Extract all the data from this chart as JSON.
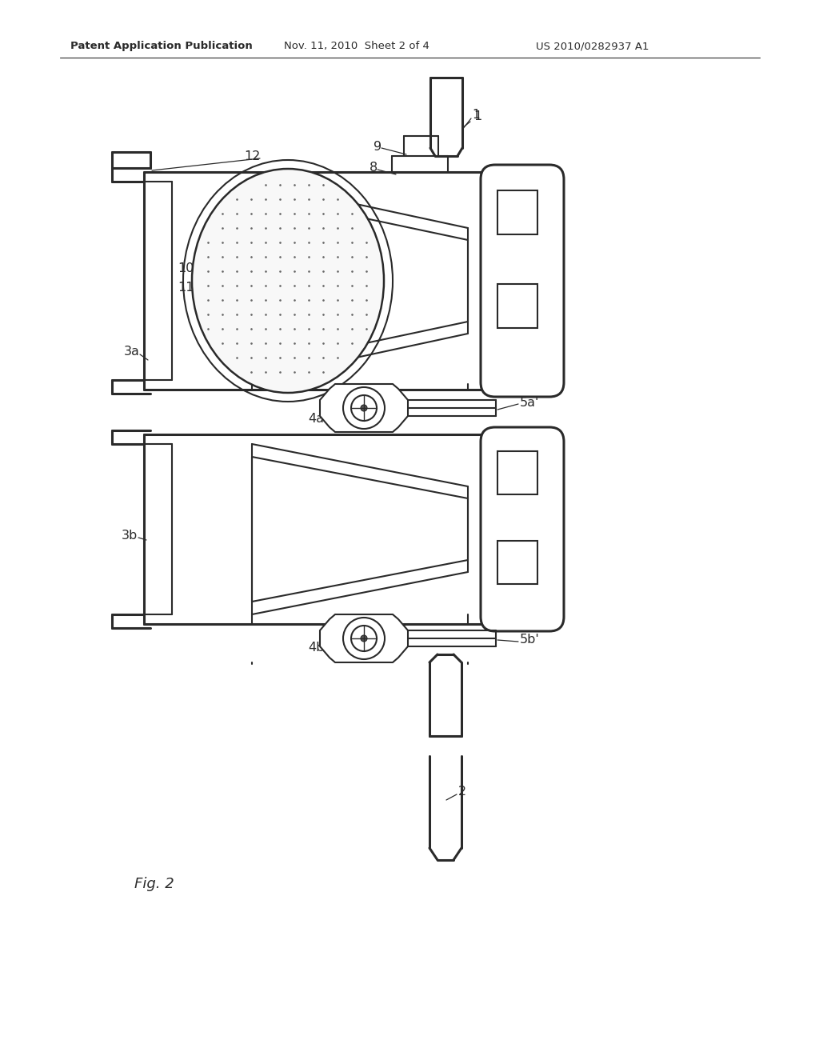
{
  "bg_color": "#ffffff",
  "line_color": "#2a2a2a",
  "header_text": "Patent Application Publication",
  "header_date": "Nov. 11, 2010  Sheet 2 of 4",
  "header_patent": "US 2010/0282937 A1"
}
